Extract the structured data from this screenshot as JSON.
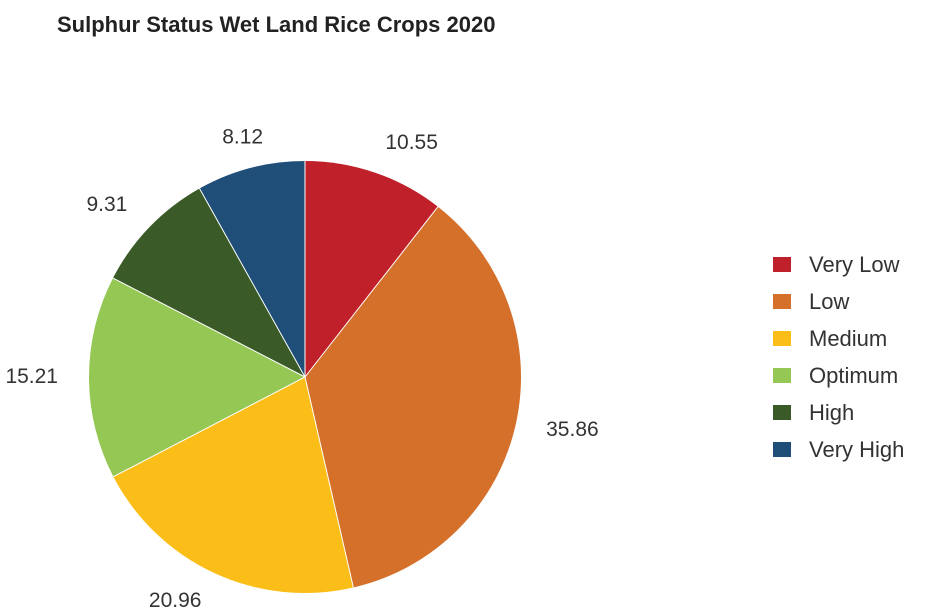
{
  "chart_data": {
    "type": "pie",
    "title": "Sulphur Status Wet Land Rice Crops 2020",
    "categories": [
      "Very Low",
      "Low",
      "Medium",
      "Optimum",
      "High",
      "Very High"
    ],
    "values": [
      10.55,
      35.86,
      20.96,
      15.21,
      9.31,
      8.12
    ],
    "value_labels": [
      "10.55",
      "35.86",
      "20.96",
      "15.21",
      "9.31",
      "8.12"
    ],
    "colors": [
      "#c0202a",
      "#d4702a",
      "#fbbd18",
      "#95c755",
      "#3a5a28",
      "#1f4e79"
    ],
    "start_angle": "12 o'clock",
    "direction": "clockwise",
    "legend_position": "right"
  }
}
